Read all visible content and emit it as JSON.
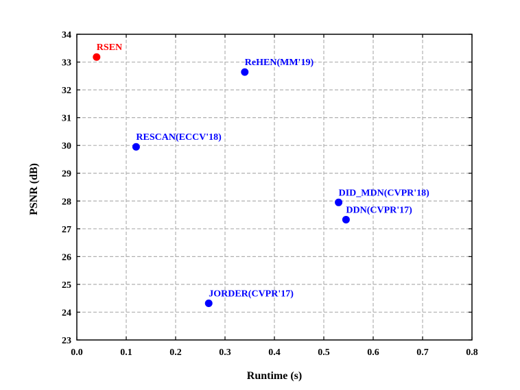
{
  "chart_data": {
    "type": "scatter",
    "xlabel": "Runtime (s)",
    "ylabel": "PSNR (dB)",
    "xlim": [
      0.0,
      0.8
    ],
    "ylim": [
      23,
      34
    ],
    "xticks": [
      "0.0",
      "0.1",
      "0.2",
      "0.3",
      "0.4",
      "0.5",
      "0.6",
      "0.7",
      "0.8"
    ],
    "yticks": [
      "23",
      "24",
      "25",
      "26",
      "27",
      "28",
      "29",
      "30",
      "31",
      "32",
      "33",
      "34"
    ],
    "grid": true,
    "points": [
      {
        "label": "RSEN",
        "x": 0.04,
        "y": 33.18,
        "color": "#ff0000"
      },
      {
        "label": "ReHEN(MM'19)",
        "x": 0.34,
        "y": 32.64,
        "color": "#0000ff"
      },
      {
        "label": "RESCAN(ECCV'18)",
        "x": 0.12,
        "y": 29.95,
        "color": "#0000ff"
      },
      {
        "label": "DID_MDN(CVPR'18)",
        "x": 0.53,
        "y": 27.95,
        "color": "#0000ff"
      },
      {
        "label": "DDN(CVPR'17)",
        "x": 0.545,
        "y": 27.33,
        "color": "#0000ff"
      },
      {
        "label": "JORDER(CVPR'17)",
        "x": 0.267,
        "y": 24.32,
        "color": "#0000ff"
      }
    ]
  }
}
